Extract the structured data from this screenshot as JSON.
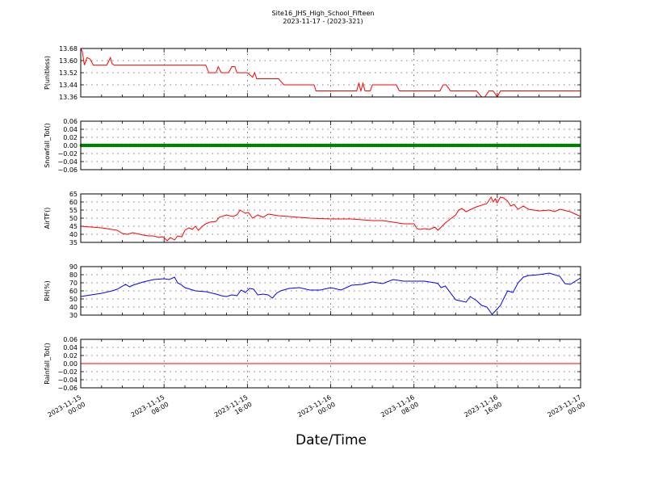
{
  "title_line1": "Site16_JHS_High_School_Fifteen",
  "title_line2": "2023-11-17 - (2023-321)",
  "xlabel": "Date/Time",
  "x_ticks": [
    {
      "t": 0,
      "label1": "2023-11-15",
      "label2": "00:00"
    },
    {
      "t": 8,
      "label1": "2023-11-15",
      "label2": "08:00"
    },
    {
      "t": 16,
      "label1": "2023-11-15",
      "label2": "16:00"
    },
    {
      "t": 24,
      "label1": "2023-11-16",
      "label2": "00:00"
    },
    {
      "t": 32,
      "label1": "2023-11-16",
      "label2": "08:00"
    },
    {
      "t": 40,
      "label1": "2023-11-16",
      "label2": "16:00"
    },
    {
      "t": 48,
      "label1": "2023-11-17",
      "label2": "00:00"
    }
  ],
  "chart_data": [
    {
      "type": "line",
      "ylabel": "P(unitless)",
      "ylim": [
        13.36,
        13.68
      ],
      "yticks": [
        "13.36",
        "13.44",
        "13.52",
        "13.60",
        "13.68"
      ],
      "grid": true,
      "color": "#ff0000",
      "x_unit": "hours since 2023-11-15 00:00",
      "x": [
        0,
        0.15,
        0.35,
        0.6,
        0.9,
        1.2,
        1.5,
        2.0,
        2.5,
        2.85,
        3.0,
        3.2,
        4.0,
        6.0,
        8.0,
        10.0,
        12.0,
        12.3,
        12.6,
        13.0,
        13.2,
        13.5,
        14.2,
        14.5,
        14.8,
        15.0,
        15.3,
        16.0,
        16.5,
        16.7,
        16.9,
        17.1,
        17.4,
        18.0,
        19.0,
        19.5,
        20.0,
        21.0,
        22.0,
        22.4,
        22.6,
        24.0,
        26.0,
        26.5,
        26.7,
        26.9,
        27.1,
        27.3,
        27.5,
        27.8,
        28.0,
        28.3,
        29.0,
        30.0,
        30.3,
        30.6,
        32.0,
        34.0,
        34.5,
        34.8,
        35.1,
        35.5,
        37.0,
        38.0,
        38.5,
        38.8,
        39.2,
        39.6,
        40.0,
        40.3,
        40.6,
        41.0,
        42.0,
        44.0,
        46.0,
        48.0
      ],
      "values": [
        13.68,
        13.66,
        13.57,
        13.62,
        13.61,
        13.57,
        13.57,
        13.57,
        13.57,
        13.62,
        13.58,
        13.57,
        13.57,
        13.57,
        13.57,
        13.57,
        13.57,
        13.52,
        13.52,
        13.52,
        13.56,
        13.52,
        13.52,
        13.56,
        13.56,
        13.52,
        13.52,
        13.52,
        13.49,
        13.52,
        13.48,
        13.48,
        13.48,
        13.48,
        13.48,
        13.44,
        13.44,
        13.44,
        13.44,
        13.44,
        13.4,
        13.4,
        13.4,
        13.4,
        13.45,
        13.4,
        13.45,
        13.4,
        13.4,
        13.4,
        13.44,
        13.44,
        13.44,
        13.44,
        13.44,
        13.4,
        13.4,
        13.4,
        13.4,
        13.44,
        13.44,
        13.4,
        13.4,
        13.4,
        13.36,
        13.36,
        13.4,
        13.4,
        13.36,
        13.4,
        13.4,
        13.4,
        13.4,
        13.4,
        13.4,
        13.4
      ]
    },
    {
      "type": "line",
      "ylabel": "Snowfall_Tot()",
      "ylim": [
        -0.06,
        0.06
      ],
      "yticks": [
        "−0.06",
        "−0.04",
        "−0.02",
        "0.00",
        "0.02",
        "0.04",
        "0.06"
      ],
      "grid": true,
      "color": "#008000",
      "marker": "dot",
      "constant_value": 0,
      "x_range": [
        0,
        48
      ]
    },
    {
      "type": "line",
      "ylabel": "AirTF()",
      "ylim": [
        35,
        65
      ],
      "yticks": [
        "35",
        "40",
        "45",
        "50",
        "55",
        "60",
        "65"
      ],
      "grid": true,
      "color": "#ff0000",
      "x_unit": "hours since 2023-11-15 00:00",
      "x": [
        0,
        1,
        2,
        3,
        3.5,
        4,
        4.5,
        5,
        6,
        6.5,
        7,
        7.5,
        7.8,
        8,
        8.3,
        8.6,
        9.0,
        9.3,
        9.7,
        10.0,
        10.4,
        10.7,
        11.0,
        11.3,
        11.7,
        12.0,
        12.4,
        13.0,
        13.3,
        14.0,
        14.6,
        15.0,
        15.3,
        15.8,
        16.1,
        16.5,
        17.0,
        17.5,
        18.0,
        19.0,
        20.0,
        22.0,
        24.0,
        26.0,
        28.0,
        29.0,
        30.0,
        31.0,
        32.0,
        32.3,
        32.6,
        33.0,
        33.5,
        34.0,
        34.3,
        35.0,
        35.6,
        36.0,
        36.3,
        36.6,
        37.0,
        38.0,
        39.0,
        39.4,
        39.6,
        39.8,
        40.0,
        40.3,
        40.6,
        41.0,
        41.3,
        41.6,
        42.0,
        42.5,
        43.0,
        44.0,
        45.0,
        45.5,
        46.0,
        47.0,
        48.0
      ],
      "values": [
        45,
        44.5,
        44,
        43,
        42.5,
        40.5,
        40,
        41,
        39.5,
        39,
        39,
        38,
        38.5,
        38,
        36,
        38,
        36.5,
        39,
        38.5,
        42.5,
        44,
        43,
        45,
        42.5,
        45,
        46.5,
        47.5,
        48,
        50.5,
        52,
        51,
        52,
        55,
        53,
        53.5,
        50,
        52,
        50.5,
        52.5,
        51.5,
        51,
        50,
        49.5,
        49.5,
        48.5,
        48.5,
        47.5,
        46.5,
        46.5,
        43.5,
        43,
        43.5,
        43,
        44.5,
        42.5,
        47,
        50,
        52,
        55,
        56,
        54,
        57,
        59,
        63,
        60,
        62,
        59.5,
        63,
        62.5,
        60.5,
        57.5,
        58.5,
        55.5,
        57.5,
        55.5,
        54.5,
        55,
        54,
        55.5,
        54,
        51
      ]
    },
    {
      "type": "line",
      "ylabel": "RH(%)",
      "ylim": [
        30,
        90
      ],
      "yticks": [
        "30",
        "40",
        "50",
        "60",
        "70",
        "80",
        "90"
      ],
      "grid": true,
      "color": "#0000ff",
      "x_unit": "hours since 2023-11-15 00:00",
      "x": [
        0,
        1,
        2,
        3,
        3.5,
        4.3,
        4.7,
        5,
        6,
        7,
        8,
        8.5,
        9,
        9.3,
        9.6,
        10,
        11,
        12,
        13,
        13.5,
        14,
        14.5,
        15,
        15.4,
        15.8,
        16.2,
        16.6,
        17,
        17.5,
        18,
        18.4,
        18.8,
        19.2,
        20,
        21,
        22,
        23,
        24,
        25,
        26,
        27,
        28,
        29,
        30,
        31,
        32,
        33,
        34,
        34.3,
        34.6,
        35,
        36,
        37,
        37.4,
        38,
        38.5,
        39,
        39.5,
        39.8,
        40.3,
        40.6,
        41,
        41.5,
        42,
        42.5,
        43,
        44,
        45,
        46,
        46.5,
        47,
        48
      ],
      "values": [
        53,
        55,
        57,
        60,
        62,
        68,
        65,
        67,
        71,
        74,
        75,
        74,
        77,
        70,
        68,
        64,
        60,
        59,
        56,
        54,
        53,
        55,
        54,
        61,
        58,
        63,
        62,
        55,
        56,
        55,
        51,
        57,
        60,
        63,
        64,
        61,
        61,
        64,
        61,
        67,
        68,
        71,
        69,
        74,
        72,
        72,
        72,
        70,
        69,
        64,
        66,
        49,
        46,
        53,
        48,
        42,
        40,
        31,
        35,
        42,
        50,
        60,
        58,
        70,
        77,
        79,
        80,
        82,
        78,
        69,
        68,
        76
      ]
    },
    {
      "type": "line",
      "ylabel": "Rainfall_Tot()",
      "ylim": [
        -0.06,
        0.06
      ],
      "yticks": [
        "−0.06",
        "−0.04",
        "−0.02",
        "0.00",
        "0.02",
        "0.04",
        "0.06"
      ],
      "grid": true,
      "color": "#ff0000",
      "constant_value": 0,
      "x_range": [
        0,
        48
      ]
    }
  ]
}
